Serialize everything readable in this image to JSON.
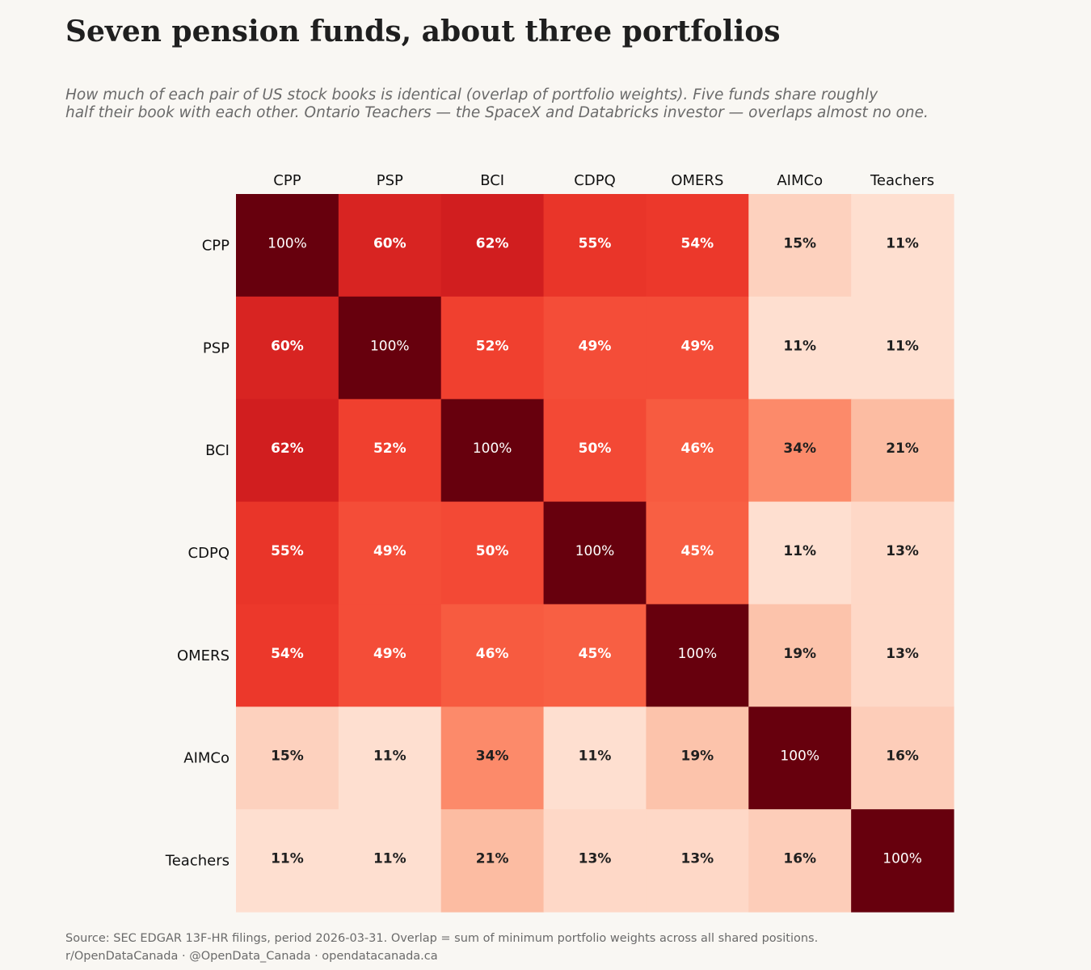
{
  "header": {
    "title": "Seven pension funds, about three portfolios",
    "subtitle_line1": "How much of each pair of US stock books is identical (overlap of portfolio weights). Five funds share roughly",
    "subtitle_line2": "half their book with each other. Ontario Teachers — the SpaceX and Databricks investor — overlaps almost no one."
  },
  "chart_data": {
    "type": "heatmap",
    "categories": [
      "CPP",
      "PSP",
      "BCI",
      "CDPQ",
      "OMERS",
      "AIMCo",
      "Teachers"
    ],
    "value_suffix": "%",
    "values": [
      [
        100,
        60,
        62,
        55,
        54,
        15,
        11
      ],
      [
        60,
        100,
        52,
        49,
        49,
        11,
        11
      ],
      [
        62,
        52,
        100,
        50,
        46,
        34,
        21
      ],
      [
        55,
        49,
        50,
        100,
        45,
        11,
        13
      ],
      [
        54,
        49,
        46,
        45,
        100,
        19,
        13
      ],
      [
        15,
        11,
        34,
        11,
        19,
        100,
        16
      ],
      [
        11,
        11,
        21,
        13,
        13,
        16,
        100
      ]
    ],
    "colorscale": "Reds",
    "x_labels_position": "top"
  },
  "footer": {
    "source": "Source: SEC EDGAR 13F-HR filings, period 2026-03-31. Overlap = sum of minimum portfolio weights across all shared positions.",
    "credit": "r/OpenDataCanada · @OpenData_Canada · opendatacanada.ca"
  }
}
